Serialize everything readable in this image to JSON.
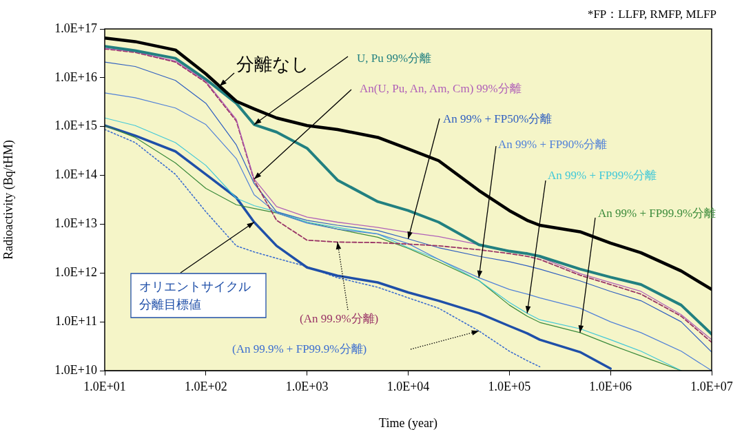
{
  "chart_data": {
    "type": "line",
    "xlabel": "Time (year)",
    "ylabel": "Radioactivity (Bq/tHM)",
    "log": "xy",
    "annotations": [
      "*FP：LLFP, RMFP, MLFP"
    ],
    "xlim": [
      10,
      10000000
    ],
    "ylim": [
      10000000000,
      100000000000000000
    ],
    "xticks": [
      {
        "value": 10,
        "label": "1.0E+01"
      },
      {
        "value": 100,
        "label": "1.0E+02"
      },
      {
        "value": 1000,
        "label": "1.0E+03"
      },
      {
        "value": 10000,
        "label": "1.0E+04"
      },
      {
        "value": 100000,
        "label": "1.0E+05"
      },
      {
        "value": 1000000,
        "label": "1.0E+06"
      },
      {
        "value": 10000000,
        "label": "1.0E+07"
      }
    ],
    "yticks": [
      {
        "value": 10000000000,
        "label": "1.0E+10"
      },
      {
        "value": 100000000000,
        "label": "1.0E+11"
      },
      {
        "value": 1000000000000,
        "label": "1.0E+12"
      },
      {
        "value": 10000000000000,
        "label": "1.0E+13"
      },
      {
        "value": 100000000000000,
        "label": "1.0E+14"
      },
      {
        "value": 1000000000000000,
        "label": "1.0E+15"
      },
      {
        "value": 10000000000000000,
        "label": "1.0E+16"
      },
      {
        "value": 100000000000000000,
        "label": "1.0E+17"
      }
    ],
    "grid": false,
    "legend": false,
    "marker": "none",
    "x": [
      10,
      20,
      50,
      100,
      200,
      300,
      500,
      1000,
      2000,
      5000,
      10000,
      20000,
      50000,
      100000,
      150000,
      200000,
      500000,
      1000000,
      2000000,
      5000000,
      10000000
    ],
    "series": [
      {
        "name": "分離なし",
        "color": "#000000",
        "line_style": "solid",
        "values": [
          6.5e+16,
          5.5e+16,
          3.7e+16,
          1.2e+16,
          3300000000000000.0,
          2300000000000000.0,
          1500000000000000.0,
          1050000000000000.0,
          870000000000000.0,
          600000000000000.0,
          350000000000000.0,
          200000000000000.0,
          49000000000000.0,
          19000000000000.0,
          12000000000000.0,
          9500000000000.0,
          7000000000000.0,
          4100000000000.0,
          2600000000000.0,
          1100000000000.0,
          460000000000.0
        ]
      },
      {
        "name": "U, Pu 99%分離",
        "color": "#228080",
        "line_style": "solid",
        "values": [
          4.4e+16,
          3.6e+16,
          2.5e+16,
          9300000000000000.0,
          3000000000000000.0,
          1100000000000000.0,
          770000000000000.0,
          360000000000000.0,
          80000000000000.0,
          29000000000000.0,
          19000000000000.0,
          11000000000000.0,
          3800000000000.0,
          2800000000000.0,
          2500000000000.0,
          2200000000000.0,
          1200000000000.0,
          820000000000.0,
          580000000000.0,
          220000000000.0,
          56000000000.0
        ]
      },
      {
        "name": "An(U, Pu, An, Am, Cm) 99%分離",
        "color": "#b060b8",
        "line_style": "solid",
        "values": [
          4e+16,
          3.4e+16,
          2.2e+16,
          8500000000000000.0,
          1400000000000000.0,
          84000000000000.0,
          23000000000000.0,
          14000000000000.0,
          11000000000000.0,
          8600000000000.0,
          6800000000000.0,
          5600000000000.0,
          3800000000000.0,
          2900000000000.0,
          2500000000000.0,
          2100000000000.0,
          970000000000.0,
          640000000000.0,
          420000000000.0,
          140000000000.0,
          43000000000.0
        ]
      },
      {
        "name": "(An 99.9%分離)",
        "color": "#993366",
        "line_style": "dashed",
        "values": [
          3.9e+16,
          3.3e+16,
          2.1e+16,
          8000000000000000.0,
          1300000000000000.0,
          79000000000000.0,
          12000000000000.0,
          4700000000000.0,
          4300000000000.0,
          4200000000000.0,
          3900000000000.0,
          3600000000000.0,
          3000000000000.0,
          2500000000000.0,
          2200000000000.0,
          1900000000000.0,
          900000000000.0,
          580000000000.0,
          370000000000.0,
          130000000000.0,
          38000000000.0
        ]
      },
      {
        "name": "An 99% + FP50%分離",
        "color": "#2f5fc0",
        "line_style": "solid",
        "values": [
          2.1e+16,
          1.7e+16,
          8800000000000000.0,
          3000000000000000.0,
          420000000000000.0,
          68000000000000.0,
          18000000000000.0,
          12000000000000.0,
          9500000000000.0,
          7400000000000.0,
          5000000000000.0,
          3300000000000.0,
          2200000000000.0,
          1700000000000.0,
          1400000000000.0,
          1200000000000.0,
          690000000000.0,
          420000000000.0,
          270000000000.0,
          100000000000.0,
          24000000000.0
        ]
      },
      {
        "name": "An 99% + FP90%分離",
        "color": "#5080d8",
        "line_style": "solid",
        "values": [
          4900000000000000.0,
          3900000000000000.0,
          2400000000000000.0,
          1100000000000000.0,
          220000000000000.0,
          40000000000000.0,
          17000000000000.0,
          10500000000000.0,
          7900000000000.0,
          6300000000000.0,
          4000000000000.0,
          1900000000000.0,
          800000000000.0,
          460000000000.0,
          370000000000.0,
          310000000000.0,
          190000000000.0,
          100000000000.0,
          60000000000.0,
          25000000000.0,
          10000000000.0
        ]
      },
      {
        "name": "An 99% + FP99%分離",
        "color": "#40c8d8",
        "line_style": "solid",
        "values": [
          1500000000000000.0,
          1050000000000000.0,
          470000000000000.0,
          160000000000000.0,
          34000000000000.0,
          24000000000000.0,
          18000000000000.0,
          11000000000000.0,
          8600000000000.0,
          6300000000000.0,
          3300000000000.0,
          1900000000000.0,
          700000000000.0,
          250000000000.0,
          150000000000.0,
          110000000000.0,
          72000000000.0,
          43000000000.0,
          25000000000.0,
          10000000000.0,
          null
        ]
      },
      {
        "name": "An 99% + FP99.9%分離",
        "color": "#3a8a3a",
        "line_style": "solid",
        "values": [
          1050000000000000.0,
          600000000000000.0,
          180000000000000.0,
          54000000000000.0,
          25000000000000.0,
          21000000000000.0,
          17000000000000.0,
          11000000000000.0,
          7900000000000.0,
          5400000000000.0,
          3200000000000.0,
          1700000000000.0,
          700000000000.0,
          220000000000.0,
          130000000000.0,
          97000000000.0,
          60000000000.0,
          34000000000.0,
          20000000000.0,
          10000000000.0,
          null
        ]
      },
      {
        "name": "オリエントサイクル分離目標値",
        "color": "#1f4fa8",
        "line_style": "solid",
        "values": [
          1050000000000000.0,
          650000000000000.0,
          310000000000000.0,
          105000000000000.0,
          35000000000000.0,
          11000000000000.0,
          3600000000000.0,
          1300000000000.0,
          880000000000.0,
          640000000000.0,
          400000000000.0,
          270000000000.0,
          150000000000.0,
          82000000000.0,
          58000000000.0,
          43000000000.0,
          24000000000.0,
          11000000000.0,
          null,
          null,
          null
        ]
      },
      {
        "name": "(An 99.9% + FP99.9%分離)",
        "color": "#3c6ed0",
        "line_style": "dotted",
        "values": [
          870000000000000.0,
          470000000000000.0,
          105000000000000.0,
          18000000000000.0,
          3600000000000.0,
          2700000000000.0,
          2000000000000.0,
          1350000000000.0,
          800000000000.0,
          510000000000.0,
          310000000000.0,
          190000000000.0,
          65000000000.0,
          25000000000.0,
          16000000000.0,
          12000000000.0,
          null,
          null,
          null,
          null,
          null
        ]
      }
    ]
  }
}
